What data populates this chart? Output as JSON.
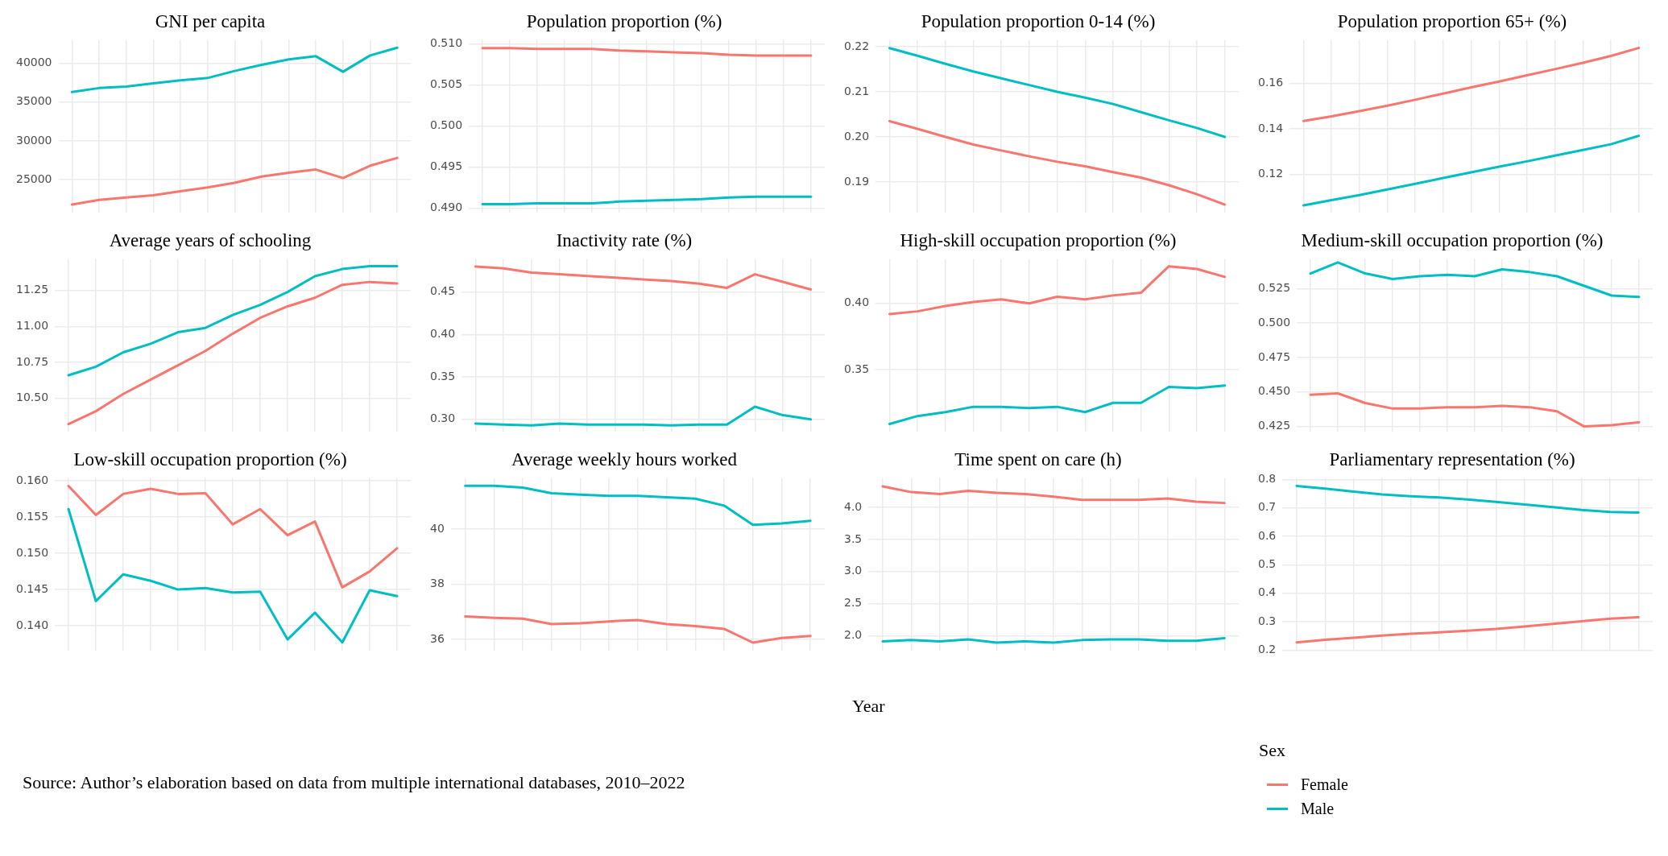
{
  "chart_data": [
    {
      "type": "line",
      "title": "GNI per capita",
      "legend": "bottom right",
      "legend_title": "Sex",
      "categories": [
        null,
        null,
        null,
        null,
        null,
        null,
        null,
        null,
        null,
        null,
        null,
        null,
        null
      ],
      "ylim": [
        20800,
        43000
      ],
      "yticks": [
        25000,
        30000,
        35000,
        40000
      ],
      "grid": true,
      "tick_labels": "y",
      "series": [
        {
          "name": "Female",
          "color": "#f8766d",
          "values": [
            21800,
            22400,
            22700,
            23000,
            23500,
            24000,
            24600,
            25400,
            25900,
            26300,
            25200,
            26800,
            27800
          ]
        },
        {
          "name": "Male",
          "color": "#00bfc4",
          "values": [
            36300,
            36800,
            37000,
            37400,
            37800,
            38100,
            39000,
            39800,
            40500,
            40900,
            38900,
            41000,
            42000
          ]
        }
      ]
    },
    {
      "type": "line",
      "title": "Population proportion (%)",
      "categories": [
        null,
        null,
        null,
        null,
        null,
        null,
        null,
        null,
        null,
        null,
        null,
        null,
        null
      ],
      "ylim": [
        0.4895,
        0.5105
      ],
      "yticks": [
        {
          "value": 0.49,
          "label": "0.490"
        },
        0.495,
        {
          "value": 0.5,
          "label": "0.500"
        },
        0.505,
        {
          "value": 0.51,
          "label": "0.510"
        }
      ],
      "grid": true,
      "tick_labels": "y",
      "series": [
        {
          "color": "#f8766d",
          "values": [
            0.5095,
            0.5095,
            0.5094,
            0.5094,
            0.5094,
            0.5092,
            0.5091,
            0.509,
            0.5089,
            0.5087,
            0.5086,
            0.5086,
            0.5086
          ]
        },
        {
          "color": "#00bfc4",
          "values": [
            0.4905,
            0.4905,
            0.4906,
            0.4906,
            0.4906,
            0.4908,
            0.4909,
            0.491,
            0.4911,
            0.4913,
            0.4914,
            0.4914,
            0.4914
          ]
        }
      ]
    },
    {
      "type": "line",
      "title": "Population proportion 0-14 (%)",
      "categories": [
        null,
        null,
        null,
        null,
        null,
        null,
        null,
        null,
        null,
        null,
        null,
        null,
        null
      ],
      "ylim": [
        0.1833,
        0.2215
      ],
      "yticks": [
        0.19,
        {
          "value": 0.2,
          "label": "0.20"
        },
        0.21,
        0.22
      ],
      "grid": true,
      "tick_labels": "y",
      "series": [
        {
          "color": "#f8766d",
          "values": [
            0.2035,
            0.2018,
            0.2,
            0.1983,
            0.197,
            0.1957,
            0.1945,
            0.1935,
            0.1922,
            0.191,
            0.1893,
            0.1873,
            0.185
          ]
        },
        {
          "color": "#00bfc4",
          "values": [
            0.2197,
            0.218,
            0.2162,
            0.2145,
            0.213,
            0.2115,
            0.21,
            0.2087,
            0.2073,
            0.2055,
            0.2037,
            0.202,
            0.2
          ]
        }
      ]
    },
    {
      "type": "line",
      "title": "Population proportion 65+ (%)",
      "categories": [
        null,
        null,
        null,
        null,
        null,
        null,
        null,
        null,
        null,
        null,
        null,
        null,
        null
      ],
      "ylim": [
        0.1035,
        0.179
      ],
      "yticks": [
        0.12,
        0.14,
        0.16
      ],
      "grid": true,
      "tick_labels": "y",
      "series": [
        {
          "color": "#f8766d",
          "values": [
            0.1435,
            0.1455,
            0.1478,
            0.1502,
            0.1528,
            0.1555,
            0.1582,
            0.1608,
            0.1635,
            0.1662,
            0.169,
            0.172,
            0.1755
          ]
        },
        {
          "color": "#00bfc4",
          "values": [
            0.1065,
            0.1088,
            0.111,
            0.1135,
            0.116,
            0.1185,
            0.121,
            0.1235,
            0.1258,
            0.1283,
            0.1308,
            0.1333,
            0.137
          ]
        }
      ]
    },
    {
      "type": "line",
      "title": "Average years of schooling",
      "categories": [
        null,
        null,
        null,
        null,
        null,
        null,
        null,
        null,
        null,
        null,
        null,
        null,
        null
      ],
      "ylim": [
        10.27,
        11.47
      ],
      "yticks": [
        {
          "value": 10.5,
          "label": "10.50"
        },
        10.75,
        {
          "value": 11,
          "label": "11.00"
        },
        11.25
      ],
      "grid": true,
      "tick_labels": "y",
      "series": [
        {
          "color": "#f8766d",
          "values": [
            10.32,
            10.41,
            10.53,
            10.63,
            10.73,
            10.83,
            10.95,
            11.06,
            11.14,
            11.2,
            11.29,
            11.31,
            11.3
          ]
        },
        {
          "color": "#00bfc4",
          "values": [
            10.66,
            10.72,
            10.82,
            10.88,
            10.96,
            10.99,
            11.08,
            11.15,
            11.24,
            11.35,
            11.4,
            11.42,
            11.42
          ]
        }
      ]
    },
    {
      "type": "line",
      "title": "Inactivity rate (%)",
      "categories": [
        null,
        null,
        null,
        null,
        null,
        null,
        null,
        null,
        null,
        null,
        null,
        null,
        null
      ],
      "ylim": [
        0.286,
        0.489
      ],
      "yticks": [
        {
          "value": 0.3,
          "label": "0.30"
        },
        0.35,
        {
          "value": 0.4,
          "label": "0.40"
        },
        0.45
      ],
      "grid": true,
      "tick_labels": "y",
      "series": [
        {
          "color": "#f8766d",
          "values": [
            0.48,
            0.478,
            0.473,
            0.471,
            0.469,
            0.467,
            0.465,
            0.463,
            0.46,
            0.455,
            0.471,
            0.462,
            0.453
          ]
        },
        {
          "color": "#00bfc4",
          "values": [
            0.295,
            0.294,
            0.293,
            0.295,
            0.294,
            0.294,
            0.294,
            0.293,
            0.294,
            0.294,
            0.315,
            0.305,
            0.3
          ]
        }
      ]
    },
    {
      "type": "line",
      "title": "High-skill occupation proportion (%)",
      "categories": [
        null,
        null,
        null,
        null,
        null,
        null,
        null,
        null,
        null,
        null,
        null,
        null,
        null
      ],
      "ylim": [
        0.3035,
        0.4335
      ],
      "yticks": [
        0.35,
        {
          "value": 0.4,
          "label": "0.40"
        }
      ],
      "grid": true,
      "tick_labels": "y",
      "series": [
        {
          "color": "#f8766d",
          "values": [
            0.392,
            0.394,
            0.398,
            0.401,
            0.403,
            0.4,
            0.405,
            0.403,
            0.406,
            0.408,
            0.428,
            0.426,
            0.42
          ]
        },
        {
          "color": "#00bfc4",
          "values": [
            0.309,
            0.315,
            0.318,
            0.322,
            0.322,
            0.321,
            0.322,
            0.318,
            0.325,
            0.325,
            0.337,
            0.336,
            0.338
          ]
        }
      ]
    },
    {
      "type": "line",
      "title": "Medium-skill occupation proportion (%)",
      "categories": [
        null,
        null,
        null,
        null,
        null,
        null,
        null,
        null,
        null,
        null,
        null,
        null,
        null
      ],
      "ylim": [
        0.4215,
        0.5465
      ],
      "yticks": [
        0.425,
        {
          "value": 0.45,
          "label": "0.450"
        },
        0.475,
        {
          "value": 0.5,
          "label": "0.500"
        },
        0.525
      ],
      "grid": true,
      "tick_labels": "y",
      "series": [
        {
          "color": "#f8766d",
          "values": [
            0.448,
            0.449,
            0.442,
            0.438,
            0.438,
            0.439,
            0.439,
            0.44,
            0.439,
            0.436,
            0.425,
            0.426,
            0.428
          ]
        },
        {
          "color": "#00bfc4",
          "values": [
            0.536,
            0.544,
            0.536,
            0.532,
            0.534,
            0.535,
            0.534,
            0.539,
            0.537,
            0.534,
            0.527,
            0.52,
            0.519
          ]
        }
      ]
    },
    {
      "type": "line",
      "title": "Low-skill occupation proportion (%)",
      "categories": [
        null,
        null,
        null,
        null,
        null,
        null,
        null,
        null,
        null,
        null,
        null,
        null,
        null
      ],
      "ylim": [
        0.1366,
        0.1604
      ],
      "yticks": [
        {
          "value": 0.14,
          "label": "0.140"
        },
        0.145,
        {
          "value": 0.15,
          "label": "0.150"
        },
        0.155,
        {
          "value": 0.16,
          "label": "0.160"
        }
      ],
      "grid": true,
      "tick_labels": "y",
      "annotations": [
        "Source: Author’s elaboration based on data from multiple international databases, 2010–2022"
      ],
      "series": [
        {
          "color": "#f8766d",
          "values": [
            0.1593,
            0.1553,
            0.1582,
            0.1589,
            0.1582,
            0.1583,
            0.154,
            0.1561,
            0.1525,
            0.1544,
            0.1453,
            0.1475,
            0.1507
          ]
        },
        {
          "color": "#00bfc4",
          "values": [
            0.1561,
            0.1434,
            0.1471,
            0.1462,
            0.145,
            0.1452,
            0.1446,
            0.1447,
            0.1381,
            0.1418,
            0.1377,
            0.1449,
            0.1441
          ]
        }
      ]
    },
    {
      "type": "line",
      "title": "Average weekly hours worked",
      "categories": [
        null,
        null,
        null,
        null,
        null,
        null,
        null,
        null,
        null,
        null,
        null,
        null,
        null
      ],
      "ylim": [
        35.6,
        41.85
      ],
      "yticks": [
        36,
        38,
        40
      ],
      "grid": true,
      "tick_labels": "y",
      "series": [
        {
          "color": "#f8766d",
          "values": [
            36.83,
            36.78,
            36.75,
            36.55,
            36.58,
            36.65,
            36.7,
            36.55,
            36.48,
            36.38,
            35.88,
            36.05,
            36.12
          ]
        },
        {
          "color": "#00bfc4",
          "values": [
            41.57,
            41.57,
            41.5,
            41.3,
            41.25,
            41.2,
            41.2,
            41.15,
            41.1,
            40.85,
            40.15,
            40.2,
            40.3
          ]
        }
      ]
    },
    {
      "type": "line",
      "title": "Time spent on care (h)",
      "xlabel": "Year",
      "categories": [
        null,
        null,
        null,
        null,
        null,
        null,
        null,
        null,
        null,
        null,
        null,
        null,
        null
      ],
      "ylim": [
        1.77,
        4.46
      ],
      "yticks": [
        {
          "value": 2,
          "label": "2.0"
        },
        2.5,
        {
          "value": 3,
          "label": "3.0"
        },
        3.5,
        {
          "value": 4,
          "label": "4.0"
        }
      ],
      "grid": true,
      "tick_labels": "y",
      "series": [
        {
          "color": "#f8766d",
          "values": [
            4.33,
            4.24,
            4.21,
            4.26,
            4.23,
            4.21,
            4.17,
            4.12,
            4.12,
            4.12,
            4.14,
            4.09,
            4.07
          ]
        },
        {
          "color": "#00bfc4",
          "values": [
            1.91,
            1.93,
            1.91,
            1.94,
            1.89,
            1.91,
            1.89,
            1.93,
            1.94,
            1.94,
            1.92,
            1.92,
            1.96
          ]
        }
      ]
    },
    {
      "type": "line",
      "title": "Parliamentary representation (%)",
      "categories": [
        null,
        null,
        null,
        null,
        null,
        null,
        null,
        null,
        null,
        null,
        null,
        null,
        null
      ],
      "ylim": [
        0.2,
        0.805
      ],
      "yticks": [
        0.2,
        0.3,
        0.4,
        0.5,
        0.6,
        0.7,
        0.8
      ],
      "grid": true,
      "tick_labels": "y",
      "series": [
        {
          "color": "#f8766d",
          "values": [
            0.228,
            0.237,
            0.244,
            0.252,
            0.258,
            0.263,
            0.269,
            0.275,
            0.284,
            0.293,
            0.302,
            0.311,
            0.316
          ]
        },
        {
          "color": "#00bfc4",
          "values": [
            0.777,
            0.768,
            0.757,
            0.747,
            0.741,
            0.737,
            0.73,
            0.721,
            0.712,
            0.703,
            0.693,
            0.686,
            0.684
          ]
        }
      ]
    }
  ]
}
